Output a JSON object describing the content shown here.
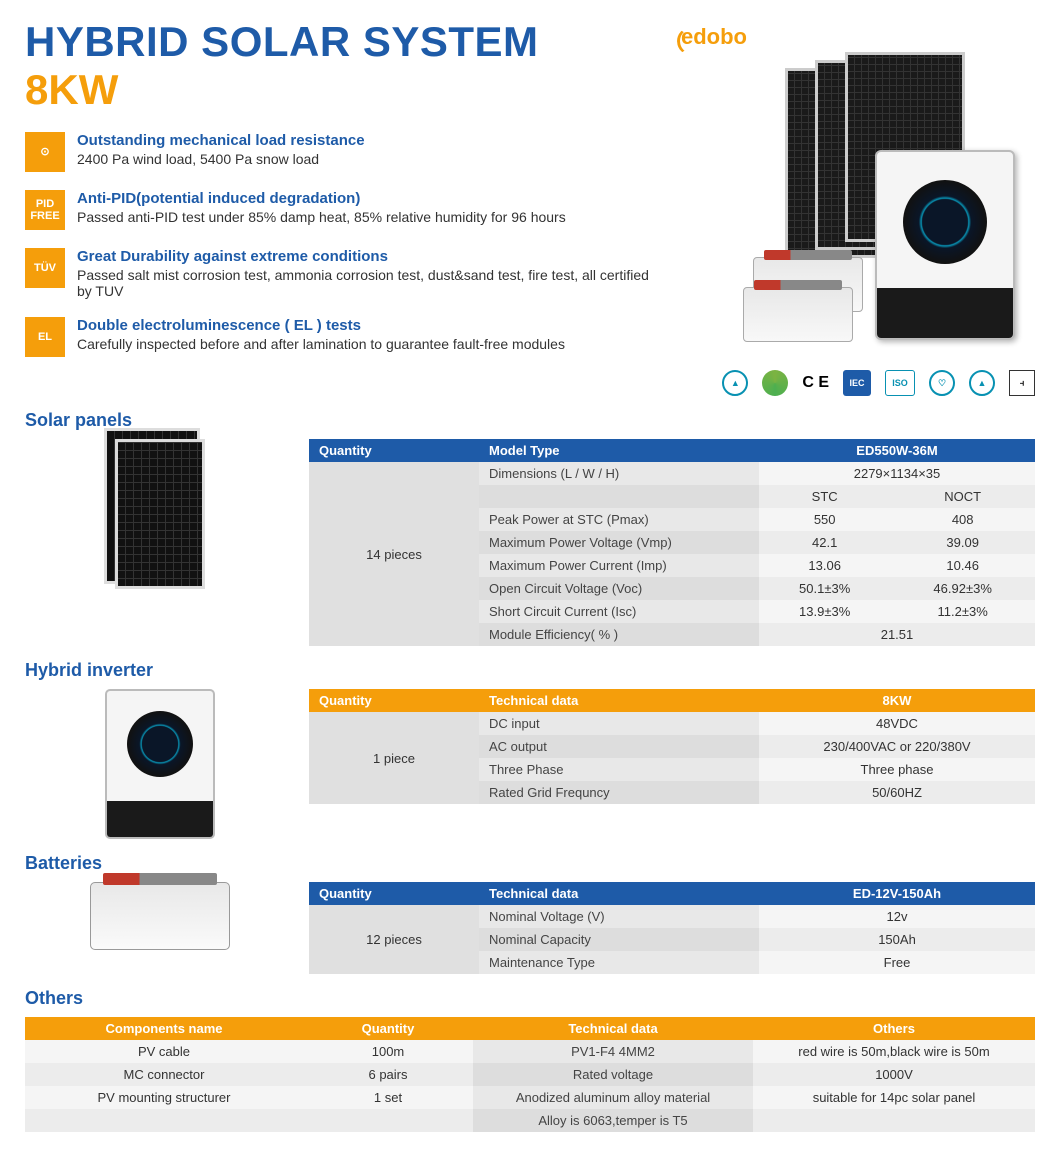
{
  "colors": {
    "blue": "#1e5ba8",
    "orange": "#f59e0b",
    "text": "#333333",
    "row_light": "#f5f5f5",
    "row_alt": "#e8e8e8",
    "qty_bg": "#e0e0e0"
  },
  "header": {
    "title_line1": "HYBRID SOLAR SYSTEM",
    "title_line2": "8KW",
    "logo": "edobo"
  },
  "features": [
    {
      "icon": "gauge-icon",
      "badge": "⊙",
      "heading": "Outstanding mechanical load resistance",
      "desc": "2400 Pa wind load, 5400 Pa snow load"
    },
    {
      "icon": "pid-icon",
      "badge": "PID\nFREE",
      "heading": "Anti-PID(potential induced degradation)",
      "desc": "Passed anti-PID test under 85% damp heat, 85% relative humidity for 96 hours"
    },
    {
      "icon": "tuv-icon",
      "badge": "TÜV",
      "heading": "Great Durability against extreme conditions",
      "desc": "Passed salt mist corrosion test, ammonia corrosion test, dust&sand test, fire test, all certified by TUV"
    },
    {
      "icon": "el-icon",
      "badge": "EL",
      "heading": "Double electroluminescence ( EL ) tests",
      "desc": "Carefully inspected before and after lamination to guarantee fault-free modules"
    }
  ],
  "certifications": [
    "TUV",
    "",
    "C E",
    "IEC",
    "ISO",
    "MCS",
    "",
    "KS"
  ],
  "panels": {
    "title": "Solar panels",
    "headers": {
      "qty": "Quantity",
      "model": "Model Type",
      "product": "ED550W-36M"
    },
    "qty": "14 pieces",
    "sub": {
      "stc": "STC",
      "noct": "NOCT"
    },
    "rows": [
      {
        "label": "Dimensions (L / W / H)",
        "v1": "2279×1134×35",
        "span": true
      },
      {
        "label": "Peak Power at STC (Pmax)",
        "v1": "550",
        "v2": "408"
      },
      {
        "label": "Maximum Power Voltage (Vmp)",
        "v1": "42.1",
        "v2": "39.09"
      },
      {
        "label": "Maximum Power Current (Imp)",
        "v1": "13.06",
        "v2": "10.46"
      },
      {
        "label": "Open Circuit Voltage (Voc)",
        "v1": "50.1±3%",
        "v2": "46.92±3%"
      },
      {
        "label": "Short Circuit Current (Isc)",
        "v1": "13.9±3%",
        "v2": "11.2±3%"
      },
      {
        "label": "Module Efficiency( % )",
        "v1": "21.51",
        "span": true
      }
    ]
  },
  "inverter": {
    "title": "Hybrid inverter",
    "headers": {
      "qty": "Quantity",
      "tech": "Technical data",
      "product": "8KW"
    },
    "qty": "1 piece",
    "rows": [
      {
        "label": "DC input",
        "val": "48VDC"
      },
      {
        "label": "AC output",
        "val": "230/400VAC or 220/380V"
      },
      {
        "label": "Three Phase",
        "val": "Three phase"
      },
      {
        "label": "Rated Grid Frequncy",
        "val": "50/60HZ"
      }
    ]
  },
  "batteries": {
    "title": "Batteries",
    "headers": {
      "qty": "Quantity",
      "tech": "Technical data",
      "product": "ED-12V-150Ah"
    },
    "qty": "12 pieces",
    "rows": [
      {
        "label": "Nominal Voltage (V)",
        "val": "12v"
      },
      {
        "label": "Nominal Capacity",
        "val": "150Ah"
      },
      {
        "label": "Maintenance Type",
        "val": "Free"
      }
    ]
  },
  "others": {
    "title": "Others",
    "headers": {
      "name": "Components name",
      "qty": "Quantity",
      "tech": "Technical data",
      "other": "Others"
    },
    "rows": [
      {
        "name": "PV cable",
        "qty": "100m",
        "tech": "PV1-F4 4MM2",
        "other": "red wire is 50m,black wire is 50m"
      },
      {
        "name": "MC connector",
        "qty": "6 pairs",
        "tech": "Rated voltage",
        "other": "1000V"
      },
      {
        "name": "PV mounting structurer",
        "qty": "1 set",
        "tech": "Anodized aluminum alloy material",
        "other": "suitable for 14pc solar panel"
      },
      {
        "name": "",
        "qty": "",
        "tech": "Alloy is 6063,temper is T5",
        "other": ""
      }
    ]
  }
}
